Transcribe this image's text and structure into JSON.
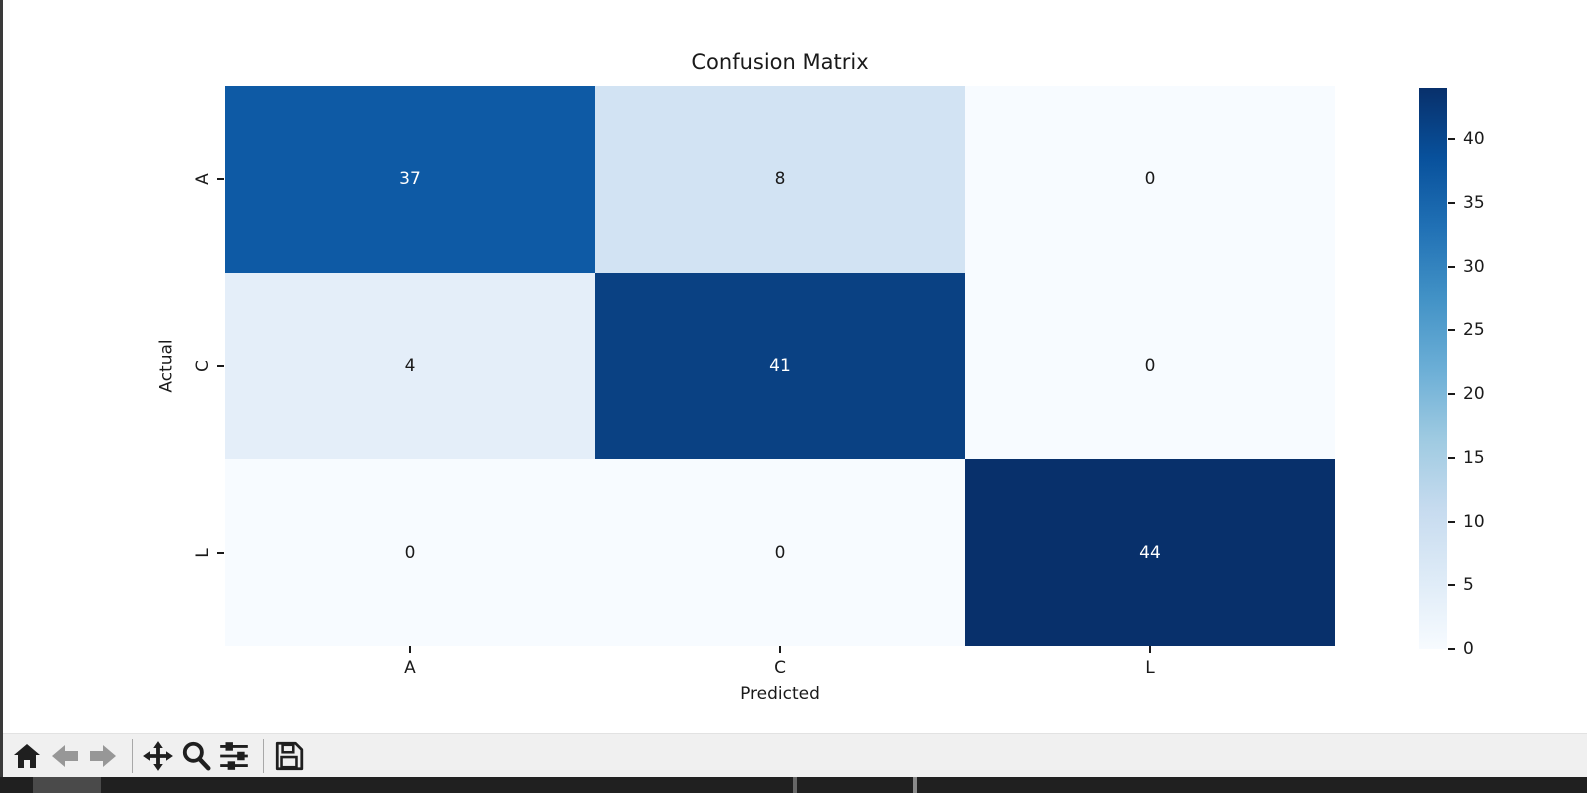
{
  "window": {
    "background": "#ffffff",
    "left_border_color": "#3a3a3a",
    "bottom_edge_color": "#202020",
    "toolbar_background": "#f0f0f0"
  },
  "chart_data": {
    "type": "heatmap",
    "title": "Confusion Matrix",
    "xlabel": "Predicted",
    "ylabel": "Actual",
    "x_categories": [
      "A",
      "C",
      "L"
    ],
    "y_categories": [
      "A",
      "C",
      "L"
    ],
    "matrix": [
      [
        37,
        8,
        0
      ],
      [
        4,
        41,
        0
      ],
      [
        0,
        0,
        44
      ]
    ],
    "vmin": 0,
    "vmax": 44,
    "colormap": "Blues",
    "cell_colors": [
      [
        "#0e5aa5",
        "#d2e3f3",
        "#f7fbff"
      ],
      [
        "#e4eef9",
        "#0a4183",
        "#f7fbff"
      ],
      [
        "#f7fbff",
        "#f7fbff",
        "#08306b"
      ]
    ],
    "annotation_text_light": "#ffffff",
    "annotation_text_dark": "#1a1a1a",
    "colorbar_ticks": [
      0,
      5,
      10,
      15,
      20,
      25,
      30,
      35,
      40
    ],
    "colormap_stops": [
      "#f7fbff 0%",
      "#deebf7 12.5%",
      "#c6dbef 25%",
      "#9ecae1 37.5%",
      "#6baed6 50%",
      "#4292c6 62.5%",
      "#2171b5 75%",
      "#08519c 87.5%",
      "#08306b 100%"
    ],
    "legend_position": "right-colorbar",
    "grid": false
  },
  "toolbar": {
    "icons": [
      {
        "name": "home-icon",
        "disabled": false
      },
      {
        "name": "back-arrow-icon",
        "disabled": true
      },
      {
        "name": "forward-arrow-icon",
        "disabled": true
      },
      {
        "name": "pan-icon",
        "disabled": false
      },
      {
        "name": "zoom-icon",
        "disabled": false
      },
      {
        "name": "subplots-sliders-icon",
        "disabled": false
      },
      {
        "name": "save-icon",
        "disabled": false
      }
    ]
  }
}
